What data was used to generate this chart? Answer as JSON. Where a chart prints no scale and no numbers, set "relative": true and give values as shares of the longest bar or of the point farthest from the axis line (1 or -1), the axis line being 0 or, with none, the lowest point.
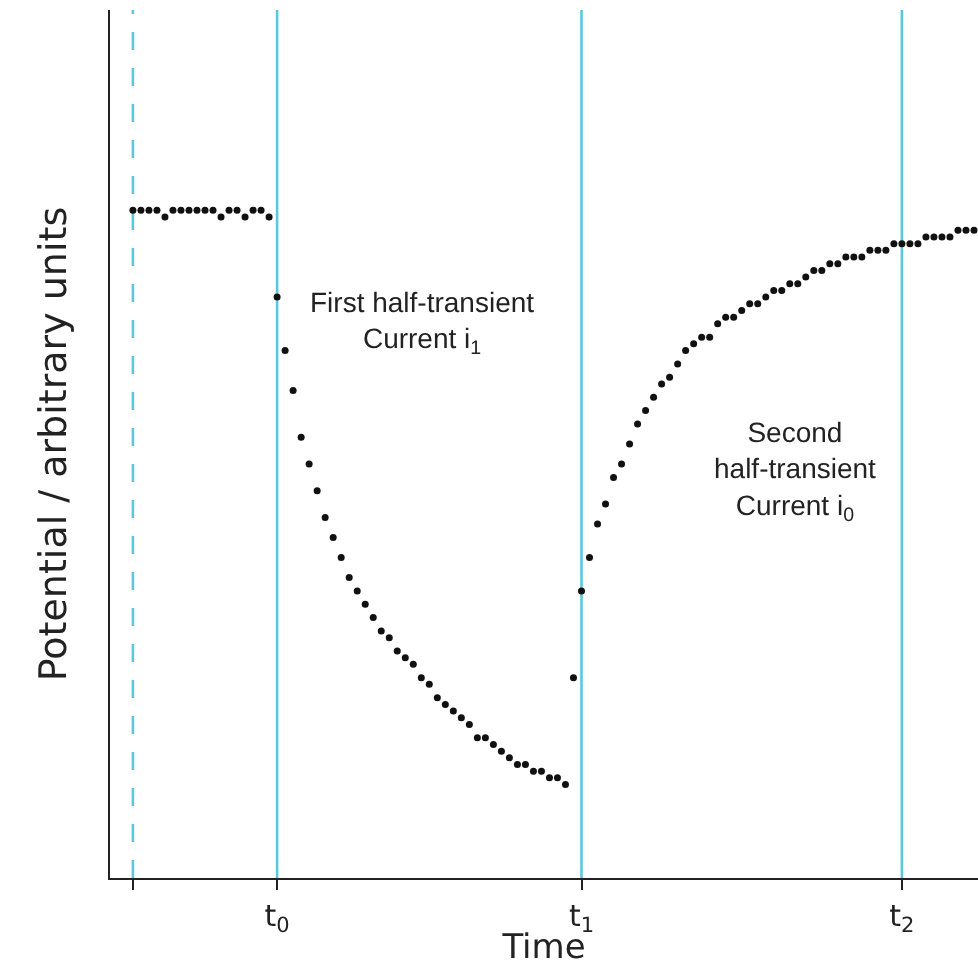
{
  "chart_data": {
    "type": "scatter",
    "relative": true,
    "xlabel": "Time",
    "ylabel": "Potential / arbitrary units",
    "marker": "circle",
    "grid": "x",
    "legend": false,
    "categories": [
      null,
      null,
      null,
      null,
      null,
      null,
      null,
      null,
      null,
      null,
      null,
      null,
      null,
      null,
      null,
      null,
      null,
      null,
      "t$_{0}$",
      null,
      null,
      null,
      null,
      null,
      null,
      null,
      null,
      null,
      null,
      null,
      null,
      null,
      null,
      null,
      null,
      null,
      null,
      null,
      null,
      null,
      null,
      null,
      null,
      null,
      null,
      null,
      null,
      null,
      null,
      null,
      null,
      null,
      null,
      null,
      null,
      null,
      "t$_{1}$",
      null,
      null,
      null,
      null,
      null,
      null,
      null,
      null,
      null,
      null,
      null,
      null,
      null,
      null,
      null,
      null,
      null,
      null,
      null,
      null,
      null,
      null,
      null,
      null,
      null,
      null,
      null,
      null,
      null,
      null,
      null,
      null,
      null,
      null,
      null,
      null,
      null,
      null,
      null,
      "t$_{2}$",
      null,
      null,
      null,
      null,
      null,
      null,
      null,
      null,
      null
    ],
    "ref_lines": [
      {
        "axis": "x",
        "color": "#5bc8dc",
        "line_style": "dashed"
      }
    ],
    "annotations": [
      "First half-transient\nCurrent i$_{1}$",
      "Second\nhalf-transient\nCurrent i$_{0}$"
    ],
    "series": [
      {
        "color": "#111111",
        "values": [
          1.0,
          1.0,
          1.0,
          1.0,
          0.99,
          1.0,
          1.0,
          1.0,
          1.0,
          1.0,
          1.0,
          0.99,
          1.0,
          1.0,
          0.99,
          1.0,
          1.0,
          0.99,
          null,
          null,
          null,
          null,
          null,
          null,
          null,
          null,
          null,
          null,
          null,
          null,
          null,
          null,
          null,
          null,
          null,
          null,
          null,
          null,
          null,
          null,
          null,
          null,
          null,
          null,
          null,
          null,
          null,
          null,
          null,
          null,
          null,
          null,
          null,
          null,
          null,
          null,
          null,
          null,
          null,
          null,
          null,
          null,
          null,
          null,
          null,
          null,
          null,
          null,
          null,
          null,
          null,
          null,
          null,
          null,
          null,
          null,
          null,
          null,
          null,
          null,
          null,
          null,
          null,
          null,
          null,
          null,
          null,
          null,
          null,
          null,
          null,
          null,
          null,
          null,
          null,
          null,
          null,
          null,
          null,
          null,
          null,
          null,
          null,
          null,
          null,
          null
        ]
      },
      {
        "color": "#111111",
        "values": [
          null,
          null,
          null,
          null,
          null,
          null,
          null,
          null,
          null,
          null,
          null,
          null,
          null,
          null,
          null,
          null,
          null,
          null,
          0.87,
          0.79,
          0.73,
          0.66,
          0.62,
          0.58,
          0.54,
          0.51,
          0.48,
          0.45,
          0.43,
          0.41,
          0.39,
          0.37,
          0.36,
          0.34,
          0.33,
          0.32,
          0.3,
          0.29,
          0.27,
          0.26,
          0.25,
          0.24,
          0.23,
          0.21,
          0.21,
          0.2,
          0.19,
          0.18,
          0.17,
          0.17,
          0.16,
          0.16,
          0.15,
          0.15,
          0.14,
          0.3,
          null,
          null,
          null,
          null,
          null,
          null,
          null,
          null,
          null,
          null,
          null,
          null,
          null,
          null,
          null,
          null,
          null,
          null,
          null,
          null,
          null,
          null,
          null,
          null,
          null,
          null,
          null,
          null,
          null,
          null,
          null,
          null,
          null,
          null,
          null,
          null,
          null,
          null,
          null,
          null,
          null,
          null,
          null,
          null,
          null,
          null,
          null,
          null,
          null,
          null
        ]
      },
      {
        "color": "#111111",
        "values": [
          null,
          null,
          null,
          null,
          null,
          null,
          null,
          null,
          null,
          null,
          null,
          null,
          null,
          null,
          null,
          null,
          null,
          null,
          null,
          null,
          null,
          null,
          null,
          null,
          null,
          null,
          null,
          null,
          null,
          null,
          null,
          null,
          null,
          null,
          null,
          null,
          null,
          null,
          null,
          null,
          null,
          null,
          null,
          null,
          null,
          null,
          null,
          null,
          null,
          null,
          null,
          null,
          null,
          null,
          null,
          null,
          0.43,
          0.48,
          0.53,
          0.56,
          0.6,
          0.62,
          0.65,
          0.68,
          0.7,
          0.72,
          0.74,
          0.75,
          0.77,
          0.79,
          0.8,
          0.81,
          0.81,
          0.83,
          0.84,
          0.84,
          0.85,
          0.86,
          0.86,
          0.87,
          0.88,
          0.88,
          0.89,
          0.89,
          0.9,
          0.91,
          0.91,
          0.92,
          0.92,
          0.93,
          0.93,
          0.93,
          0.94,
          0.94,
          0.94,
          0.95,
          0.95,
          0.95,
          0.95,
          0.96,
          0.96,
          0.96,
          0.96,
          0.97,
          0.97,
          0.97
        ]
      }
    ]
  }
}
